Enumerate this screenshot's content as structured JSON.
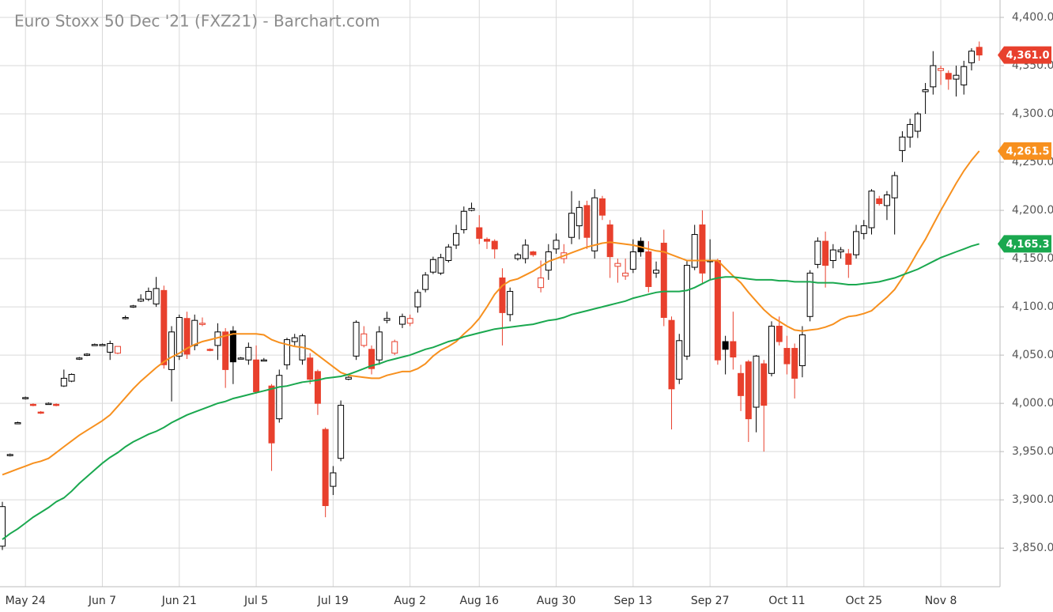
{
  "chart_data": {
    "type": "candlestick",
    "title": "Euro Stoxx 50 Dec '21 (FXZ21) - Barchart.com",
    "categories": [
      null,
      null,
      null,
      "May 24",
      null,
      null,
      null,
      null,
      null,
      null,
      null,
      null,
      null,
      "Jun 7",
      null,
      null,
      null,
      null,
      null,
      null,
      null,
      null,
      null,
      "Jun 21",
      null,
      null,
      null,
      null,
      null,
      null,
      null,
      null,
      null,
      "Jul 5",
      null,
      null,
      null,
      null,
      null,
      null,
      null,
      null,
      null,
      "Jul 19",
      null,
      null,
      null,
      null,
      null,
      null,
      null,
      null,
      null,
      "Aug 2",
      null,
      null,
      null,
      null,
      null,
      null,
      null,
      null,
      "Aug 16",
      null,
      null,
      null,
      null,
      null,
      null,
      null,
      null,
      null,
      "Aug 30",
      null,
      null,
      null,
      null,
      null,
      null,
      null,
      null,
      null,
      "Sep 13",
      null,
      null,
      null,
      null,
      null,
      null,
      null,
      null,
      null,
      "Sep 27",
      null,
      null,
      null,
      null,
      null,
      null,
      null,
      null,
      null,
      "Oct 11",
      null,
      null,
      null,
      null,
      null,
      null,
      null,
      null,
      null,
      "Oct 25",
      null,
      null,
      null,
      null,
      null,
      null,
      null,
      null,
      null,
      "Nov 8",
      null,
      null,
      null,
      null,
      null
    ],
    "open": [
      3852,
      3946,
      3980,
      4005,
      3999,
      3991,
      4000,
      3999,
      4018,
      4023,
      4046,
      4050,
      4061,
      4061,
      4053,
      4052,
      4088,
      4100,
      4106,
      4108,
      4103,
      4117,
      4035,
      4049,
      4088,
      4060,
      4082,
      4056,
      4060,
      4074,
      4075,
      4047,
      4045,
      4045,
      4045,
      4018,
      3984,
      4040,
      4064,
      4045,
      4047,
      4033,
      3973,
      3914,
      3943,
      4025,
      4049,
      4060,
      4056,
      4045,
      4086,
      4052,
      4082,
      4083,
      4100,
      4118,
      4136,
      4135,
      4148,
      4164,
      4180,
      4200,
      4182,
      4170,
      4168,
      4130,
      4092,
      4150,
      4150,
      4157,
      4120,
      4138,
      4160,
      4150,
      4172,
      4184,
      4205,
      4158,
      4212,
      4185,
      4142,
      4132,
      4139,
      4168,
      4157,
      4135,
      4166,
      4086,
      4025,
      4049,
      4141,
      4185,
      4148,
      4148,
      4064,
      4064,
      4031,
      4043,
      3996,
      4041,
      4031,
      4080,
      4057,
      4057,
      4039,
      4090,
      4144,
      4168,
      4148,
      4157,
      4155,
      4154,
      4176,
      4182,
      4212,
      4205,
      4213,
      4262,
      4276,
      4282,
      4323,
      4328,
      4345,
      4342,
      4336,
      4330,
      4353,
      4369
    ],
    "high": [
      3898,
      3948,
      3981,
      4007,
      4000,
      3992,
      4001,
      4000,
      4035,
      4031,
      4048,
      4052,
      4062,
      4062,
      4065,
      4059,
      4091,
      4102,
      4113,
      4120,
      4131,
      4122,
      4080,
      4092,
      4095,
      4092,
      4089,
      4057,
      4083,
      4078,
      4080,
      4048,
      4063,
      4060,
      4047,
      4020,
      4035,
      4068,
      4072,
      4072,
      4052,
      4035,
      3975,
      3935,
      4003,
      4028,
      4086,
      4080,
      4060,
      4080,
      4095,
      4066,
      4093,
      4092,
      4118,
      4136,
      4152,
      4155,
      4165,
      4185,
      4204,
      4208,
      4195,
      4172,
      4170,
      4140,
      4120,
      4156,
      4170,
      4158,
      4148,
      4165,
      4176,
      4165,
      4220,
      4210,
      4210,
      4222,
      4215,
      4190,
      4150,
      4150,
      4170,
      4172,
      4168,
      4147,
      4180,
      4090,
      4072,
      4148,
      4185,
      4200,
      4170,
      4150,
      4070,
      4095,
      4040,
      4045,
      4050,
      4045,
      4085,
      4090,
      4070,
      4062,
      4080,
      4138,
      4172,
      4178,
      4165,
      4162,
      4160,
      4185,
      4190,
      4222,
      4215,
      4220,
      4240,
      4282,
      4295,
      4302,
      4332,
      4365,
      4350,
      4345,
      4350,
      4355,
      4368,
      4375
    ],
    "low": [
      3848,
      3945,
      3979,
      4004,
      3997,
      3989,
      3999,
      3997,
      4017,
      4022,
      4045,
      4049,
      4060,
      4060,
      4045,
      4051,
      4087,
      4099,
      4105,
      4106,
      4100,
      4036,
      4002,
      4045,
      4046,
      4055,
      4080,
      4054,
      4045,
      4016,
      4020,
      4046,
      4040,
      4010,
      4044,
      3930,
      3980,
      4035,
      4060,
      4040,
      4020,
      3988,
      3882,
      3905,
      3940,
      4024,
      4045,
      4058,
      4030,
      4040,
      4083,
      4050,
      4078,
      4080,
      4094,
      4115,
      4134,
      4133,
      4146,
      4160,
      4176,
      4199,
      4165,
      4160,
      4150,
      4060,
      4085,
      4148,
      4145,
      4152,
      4115,
      4128,
      4155,
      4145,
      4165,
      4170,
      4160,
      4150,
      4190,
      4130,
      4125,
      4128,
      4135,
      4152,
      4115,
      4130,
      4080,
      3973,
      4020,
      4045,
      4138,
      4125,
      4128,
      4040,
      4030,
      4035,
      3992,
      3960,
      3970,
      3950,
      4028,
      4060,
      4030,
      4005,
      4027,
      4085,
      4140,
      4120,
      4140,
      4150,
      4130,
      4150,
      4170,
      4175,
      4205,
      4190,
      4175,
      4250,
      4265,
      4275,
      4300,
      4320,
      4330,
      4325,
      4318,
      4320,
      4345,
      4355
    ],
    "close": [
      3893,
      3947,
      3980,
      4006,
      3998,
      3990,
      4000,
      3998,
      4026,
      4030,
      4047,
      4051,
      4061,
      4061,
      4062,
      4059,
      4089,
      4101,
      4108,
      4116,
      4119,
      4040,
      4074,
      4089,
      4051,
      4086,
      4083,
      4055,
      4074,
      4035,
      4043,
      4047,
      4058,
      4012,
      4045,
      3959,
      4029,
      4066,
      4068,
      4070,
      4025,
      4000,
      3894,
      3928,
      3998,
      4027,
      4084,
      4072,
      4036,
      4074,
      4088,
      4064,
      4090,
      4088,
      4115,
      4133,
      4149,
      4151,
      4162,
      4176,
      4199,
      4202,
      4171,
      4168,
      4160,
      4094,
      4116,
      4154,
      4164,
      4154,
      4130,
      4157,
      4169,
      4156,
      4197,
      4203,
      4172,
      4213,
      4195,
      4152,
      4145,
      4135,
      4157,
      4157,
      4121,
      4138,
      4089,
      4015,
      4065,
      4143,
      4175,
      4135,
      4148,
      4045,
      4056,
      4048,
      4008,
      3984,
      4049,
      3998,
      4080,
      4064,
      4041,
      4026,
      4071,
      4135,
      4168,
      4143,
      4159,
      4159,
      4144,
      4178,
      4184,
      4220,
      4207,
      4216,
      4236,
      4276,
      4289,
      4300,
      4325,
      4350,
      4347,
      4336,
      4340,
      4349,
      4365,
      4361
    ],
    "close_label": "4,361.0",
    "up_color": "#000000",
    "down_color": "#e8402d",
    "series": [
      {
        "color": "#f7901e",
        "last_label": "4,261.5",
        "values": [
          3926,
          3929,
          3932,
          3935,
          3938,
          3940,
          3943,
          3949,
          3955,
          3961,
          3967,
          3972,
          3977,
          3982,
          3988,
          3997,
          4006,
          4015,
          4023,
          4030,
          4037,
          4043,
          4048,
          4052,
          4057,
          4061,
          4064,
          4066,
          4068,
          4070,
          4072,
          4072,
          4072,
          4072,
          4071,
          4066,
          4063,
          4061,
          4059,
          4058,
          4056,
          4050,
          4044,
          4038,
          4032,
          4029,
          4028,
          4027,
          4026,
          4026,
          4029,
          4031,
          4033,
          4033,
          4036,
          4041,
          4049,
          4055,
          4059,
          4064,
          4072,
          4079,
          4088,
          4100,
          4113,
          4122,
          4127,
          4129,
          4133,
          4137,
          4142,
          4147,
          4150,
          4153,
          4156,
          4159,
          4162,
          4164,
          4166,
          4167,
          4166,
          4165,
          4164,
          4162,
          4160,
          4158,
          4157,
          4154,
          4151,
          4148,
          4148,
          4148,
          4148,
          4148,
          4140,
          4132,
          4125,
          4115,
          4106,
          4097,
          4090,
          4085,
          4080,
          4076,
          4075,
          4076,
          4077,
          4079,
          4082,
          4087,
          4090,
          4091,
          4093,
          4096,
          4103,
          4110,
          4118,
          4130,
          4143,
          4157,
          4170,
          4185,
          4200,
          4214,
          4228,
          4241,
          4252,
          4261.5
        ]
      },
      {
        "color": "#1aa84f",
        "last_label": "4,165.3",
        "values": [
          3859,
          3865,
          3870,
          3876,
          3882,
          3887,
          3892,
          3898,
          3902,
          3909,
          3917,
          3924,
          3931,
          3938,
          3944,
          3949,
          3955,
          3960,
          3964,
          3968,
          3971,
          3975,
          3980,
          3984,
          3988,
          3991,
          3994,
          3997,
          4000,
          4002,
          4005,
          4007,
          4009,
          4011,
          4013,
          4015,
          4017,
          4018,
          4020,
          4022,
          4023,
          4024,
          4026,
          4027,
          4028,
          4030,
          4033,
          4036,
          4039,
          4041,
          4044,
          4046,
          4048,
          4050,
          4053,
          4056,
          4058,
          4061,
          4064,
          4066,
          4069,
          4071,
          4073,
          4075,
          4077,
          4078,
          4079,
          4080,
          4081,
          4082,
          4084,
          4086,
          4087,
          4089,
          4092,
          4094,
          4096,
          4098,
          4100,
          4102,
          4104,
          4106,
          4109,
          4111,
          4113,
          4115,
          4116,
          4116,
          4116,
          4117,
          4120,
          4124,
          4128,
          4130,
          4131,
          4131,
          4130,
          4129,
          4128,
          4128,
          4128,
          4127,
          4127,
          4126,
          4126,
          4126,
          4125,
          4125,
          4125,
          4124,
          4123,
          4123,
          4124,
          4125,
          4126,
          4128,
          4130,
          4133,
          4136,
          4139,
          4143,
          4147,
          4151,
          4154,
          4157,
          4160,
          4163,
          4165.3
        ]
      }
    ],
    "ylim": [
      3810,
      4418
    ],
    "yticks": [
      {
        "value": 3850,
        "label": "3,850.0"
      },
      {
        "value": 3900,
        "label": "3,900.0"
      },
      {
        "value": 3950,
        "label": "3,950.0"
      },
      {
        "value": 4000,
        "label": "4,000.0"
      },
      {
        "value": 4050,
        "label": "4,050.0"
      },
      {
        "value": 4100,
        "label": "4,100.0"
      },
      {
        "value": 4150,
        "label": "4,150.0"
      },
      {
        "value": 4200,
        "label": "4,200.0"
      },
      {
        "value": 4250,
        "label": "4,250.0"
      },
      {
        "value": 4300,
        "label": "4,300.0"
      },
      {
        "value": 4350,
        "label": "4,350.0"
      },
      {
        "value": 4400,
        "label": "4,400.0"
      }
    ],
    "grid": true
  }
}
